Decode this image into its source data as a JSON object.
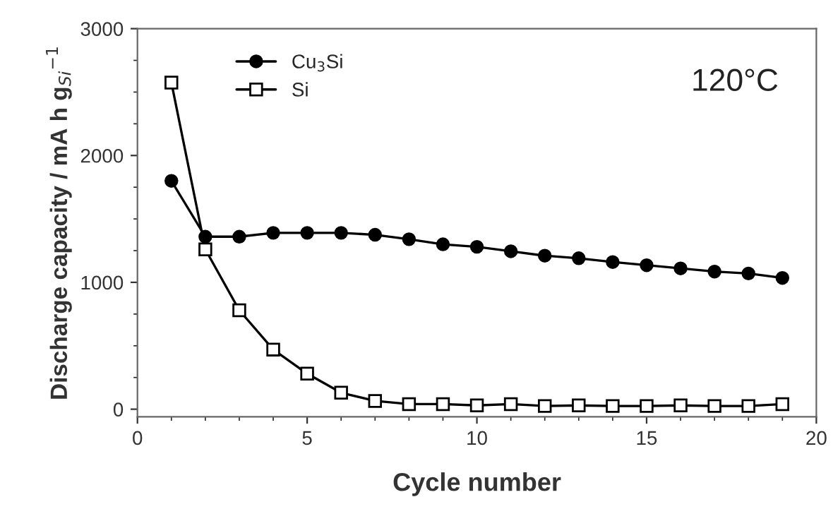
{
  "chart_data": {
    "type": "line",
    "xlabel": "Cycle number",
    "ylabel": "Discharge capacity / mA h g$_{Si}$$^{−1}$",
    "annotations": [
      "120°C"
    ],
    "x": [
      1,
      2,
      3,
      4,
      5,
      6,
      7,
      8,
      9,
      10,
      11,
      12,
      13,
      14,
      15,
      16,
      17,
      18,
      19
    ],
    "series": [
      {
        "name": "Cu$_{3}$Si",
        "color": "#000000",
        "marker": "circle",
        "values": [
          1800,
          1360,
          1360,
          1390,
          1390,
          1390,
          1375,
          1340,
          1300,
          1280,
          1245,
          1210,
          1190,
          1160,
          1135,
          1110,
          1085,
          1070,
          1035
        ]
      },
      {
        "name": "Si",
        "color": "#000000",
        "marker": "square",
        "values": [
          2575,
          1260,
          780,
          470,
          280,
          130,
          65,
          40,
          40,
          30,
          40,
          25,
          30,
          25,
          25,
          30,
          25,
          25,
          40
        ]
      }
    ],
    "xlim": [
      0,
      20
    ],
    "xticks": [
      0,
      5,
      10,
      15,
      20
    ],
    "ylim": [
      -60,
      3000
    ],
    "yticks": [
      0,
      1000,
      2000,
      3000
    ],
    "grid": false,
    "legend": "top left",
    "line_style": "solid"
  }
}
